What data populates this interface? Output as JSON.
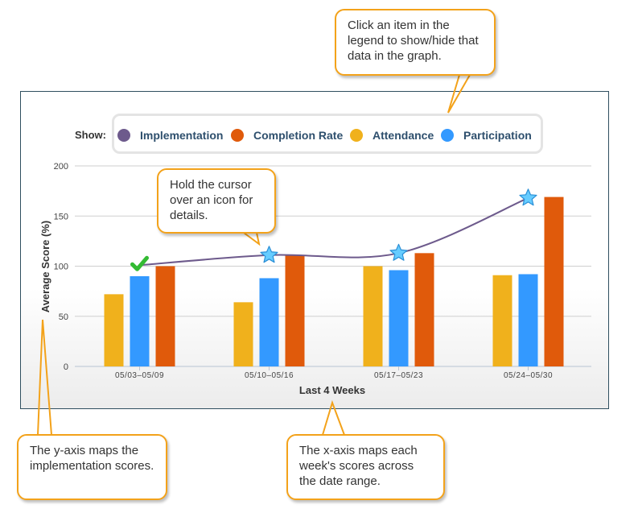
{
  "colors": {
    "implementation": "#6d5a8c",
    "completion_rate": "#e05a0b",
    "attendance": "#f0b11c",
    "participation": "#3399ff",
    "callout_border": "#f3a21a",
    "marker_check": "#33bb33",
    "marker_star": "#66ccff"
  },
  "legend": {
    "show_label": "Show:",
    "items": [
      {
        "label": "Implementation",
        "color": "#6d5a8c"
      },
      {
        "label": "Completion Rate",
        "color": "#e05a0b"
      },
      {
        "label": "Attendance",
        "color": "#f0b11c"
      },
      {
        "label": "Participation",
        "color": "#3399ff"
      }
    ]
  },
  "callouts": {
    "legend_tip": "Click an item in the legend to show/hide that data in the graph.",
    "hover_tip": "Hold the cursor over an icon for details.",
    "y_axis_tip": "The y-axis maps the implementation scores.",
    "x_axis_tip": "The x-axis maps each week's scores across the date range."
  },
  "chart_data": {
    "type": "bar",
    "xlabel": "Last 4 Weeks",
    "ylabel": "Average Score (%)",
    "ylim": [
      0,
      200
    ],
    "yticks": [
      0,
      50,
      100,
      150,
      200
    ],
    "categories": [
      "05/03–05/09",
      "05/10–05/16",
      "05/17–05/23",
      "05/24–05/30"
    ],
    "grid": true,
    "legend_placement": "top",
    "series": [
      {
        "name": "Attendance",
        "type": "bar",
        "values": [
          72,
          64,
          100,
          91
        ]
      },
      {
        "name": "Participation",
        "type": "bar",
        "values": [
          90,
          88,
          96,
          92
        ]
      },
      {
        "name": "Completion Rate",
        "type": "bar",
        "values": [
          100,
          111,
          113,
          169
        ]
      },
      {
        "name": "Implementation",
        "type": "line",
        "values": [
          101,
          111,
          113,
          168
        ],
        "markers": [
          "check-icon",
          "star-icon",
          "star-icon",
          "star-icon"
        ]
      }
    ]
  }
}
